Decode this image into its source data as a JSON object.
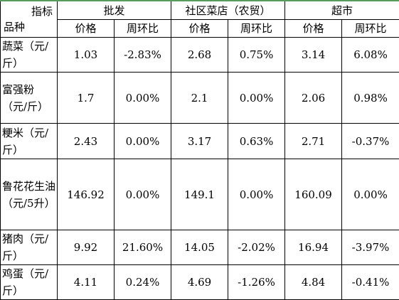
{
  "header": {
    "corner_top": "指标",
    "corner_bottom": "品种",
    "groups": [
      "批发",
      "社区菜店（农贸）",
      "超市"
    ],
    "subheaders": [
      "价格",
      "周环比",
      "价格",
      "周环比",
      "价格",
      "周环比"
    ]
  },
  "table": {
    "rows": [
      {
        "name": "蔬菜（元/斤）",
        "cells": [
          "1.03",
          "-2.83%",
          "2.68",
          "0.75%",
          "3.14",
          "6.08%"
        ]
      },
      {
        "name": "富强粉（元/斤）",
        "cells": [
          "1.7",
          "0.00%",
          "2.1",
          "0.00%",
          "2.06",
          "0.98%"
        ]
      },
      {
        "name": "粳米（元/斤）",
        "cells": [
          "2.43",
          "0.00%",
          "3.17",
          "0.63%",
          "2.71",
          "-0.37%"
        ]
      },
      {
        "name": "鲁花花生油（元/5升）",
        "cells": [
          "146.92",
          "0.00%",
          "149.1",
          "0.00%",
          "160.09",
          "0.00%"
        ]
      },
      {
        "name": "猪肉（元/斤）",
        "cells": [
          "9.92",
          "21.60%",
          "14.05",
          "-2.02%",
          "16.94",
          "-3.97%"
        ]
      },
      {
        "name": "鸡蛋（元/斤）",
        "cells": [
          "4.11",
          "0.24%",
          "4.69",
          "-1.26%",
          "4.84",
          "-0.41%"
        ]
      }
    ]
  }
}
